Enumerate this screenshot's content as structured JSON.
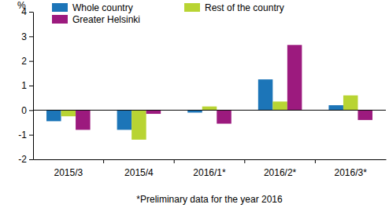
{
  "chart_data": {
    "type": "bar",
    "y_label": "%",
    "annotations": [
      "*Preliminary data for the year 2016"
    ],
    "categories": [
      "2015/3",
      "2015/4",
      "2016/1*",
      "2016/2*",
      "2016/3*"
    ],
    "series": [
      {
        "name": "Whole country",
        "color": "#1c75b8",
        "values": [
          -0.45,
          -0.8,
          -0.1,
          1.25,
          0.2
        ]
      },
      {
        "name": "Rest of the country",
        "color": "#b8d433",
        "values": [
          -0.25,
          -1.2,
          0.15,
          0.35,
          0.6
        ]
      },
      {
        "name": "Greater Helsinki",
        "color": "#9c1a7e",
        "values": [
          -0.8,
          -0.15,
          -0.55,
          2.65,
          -0.4
        ]
      }
    ],
    "ylim": [
      -2,
      4
    ],
    "yticks": [
      -2,
      -1,
      0,
      1,
      2,
      3,
      4
    ],
    "grid": false,
    "legend": "top"
  }
}
